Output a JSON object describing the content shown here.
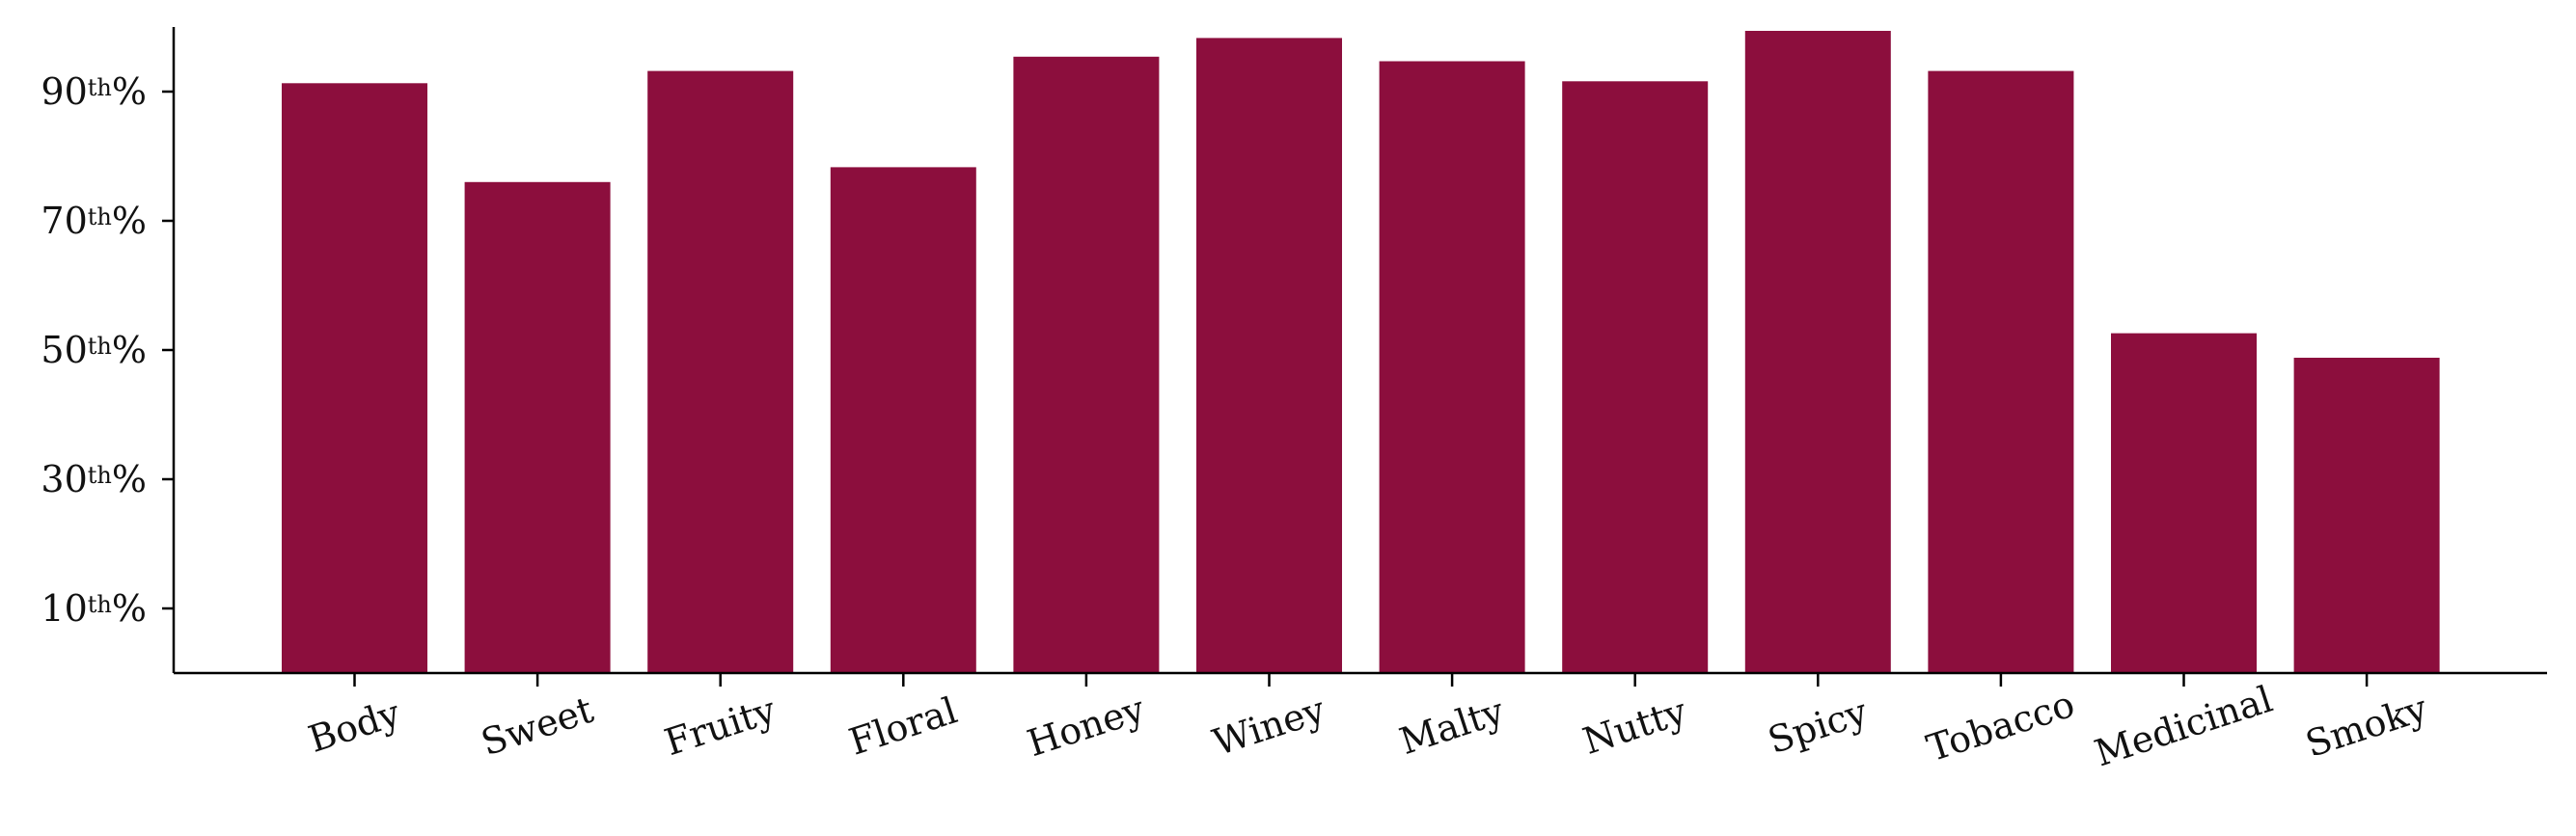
{
  "chart_data": {
    "type": "bar",
    "categories": [
      "Body",
      "Sweet",
      "Fruity",
      "Floral",
      "Honey",
      "Winey",
      "Malty",
      "Nutty",
      "Spicy",
      "Tobacco",
      "Medicinal",
      "Smoky"
    ],
    "values": [
      91.3,
      76.0,
      93.2,
      78.3,
      95.4,
      98.3,
      94.7,
      91.6,
      99.4,
      93.2,
      52.6,
      48.8
    ],
    "ylim": [
      0,
      100
    ],
    "y_ticks": [
      {
        "value": 10,
        "num": "10",
        "sup": "th",
        "pct": "%"
      },
      {
        "value": 30,
        "num": "30",
        "sup": "th",
        "pct": "%"
      },
      {
        "value": 50,
        "num": "50",
        "sup": "th",
        "pct": "%"
      },
      {
        "value": 70,
        "num": "70",
        "sup": "th",
        "pct": "%"
      },
      {
        "value": 90,
        "num": "90",
        "sup": "th",
        "pct": "%"
      }
    ],
    "bar_color": "#8c0e3d",
    "title": "",
    "xlabel": "",
    "ylabel": "",
    "grid": false,
    "x_label_rotation_deg": -18
  }
}
